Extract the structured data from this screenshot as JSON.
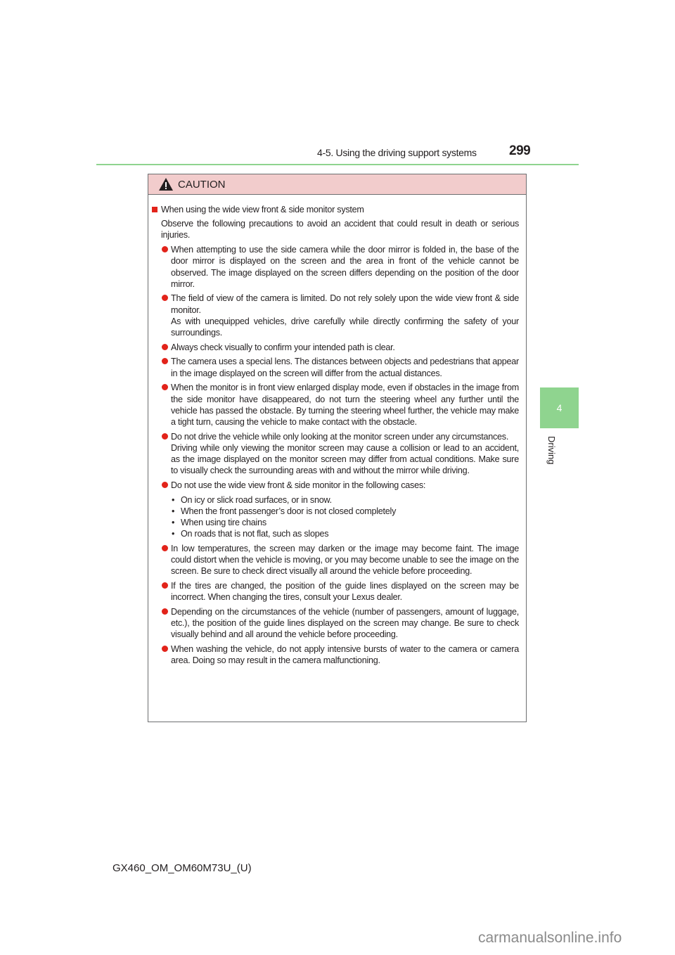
{
  "header": {
    "section": "4-5. Using the driving support systems",
    "page_number": "299"
  },
  "side_tab": {
    "number": "4",
    "label": "Driving"
  },
  "caution": {
    "title": "CAUTION",
    "icon": "warning-triangle-icon",
    "heading": "When using the wide view front & side monitor system",
    "intro": "Observe the following precautions to avoid an accident that could result in death or serious injuries.",
    "bullets": [
      "When attempting to use the side camera while the door mirror is folded in, the base of the door mirror is displayed on the screen and the area in front of the vehicle cannot be observed. The image displayed on the screen differs depending on the position of the door mirror.",
      "The field of view of the camera is limited. Do not rely solely upon the wide view front & side monitor.\nAs with unequipped vehicles, drive carefully while directly confirming the safety of your surroundings.",
      "Always check visually to confirm your intended path is clear.",
      "The camera uses a special lens. The distances between objects and pedestrians that appear in the image displayed on the screen will differ from the actual distances.",
      "When the monitor is in front view enlarged display mode, even if obstacles in the image from the side monitor have disappeared, do not turn the steering wheel any further until the vehicle has passed the obstacle. By turning the steering wheel further, the vehicle may make a tight turn, causing the vehicle to make contact with the obstacle.",
      "Do not drive the vehicle while only looking at the monitor screen under any circumstances.\nDriving while only viewing the monitor screen may cause a collision or lead to an accident, as the image displayed on the monitor screen may differ from actual conditions. Make sure to visually check the surrounding areas with and without the mirror while driving.",
      "Do not use the wide view front & side monitor in the following cases:",
      "In low temperatures, the screen may darken or the image may become faint. The image could distort when the vehicle is moving, or you may become unable to see the image on the screen. Be sure to check direct visually all around the vehicle before proceeding.",
      "If the tires are changed, the position of the guide lines displayed on the screen may be incorrect. When changing the tires, consult your Lexus dealer.",
      "Depending on the circumstances of the vehicle (number of passengers, amount of luggage, etc.), the position of the guide lines displayed on the screen may change. Be sure to check visually behind and all around the vehicle before proceeding.",
      "When washing the vehicle, do not apply intensive bursts of water to the camera or camera area. Doing so may result in the camera malfunctioning."
    ],
    "cases": [
      "On icy or slick road surfaces, or in snow.",
      "When the front passenger’s door is not closed completely",
      "When using tire chains",
      "On roads that is not flat, such as slopes"
    ]
  },
  "footer": {
    "code": "GX460_OM_OM60M73U_(U)"
  },
  "watermark": "carmanualsonline.info",
  "colors": {
    "accent_green": "#8fd48f",
    "caution_bg": "#f2cccc",
    "bullet_red": "#e2231a"
  }
}
